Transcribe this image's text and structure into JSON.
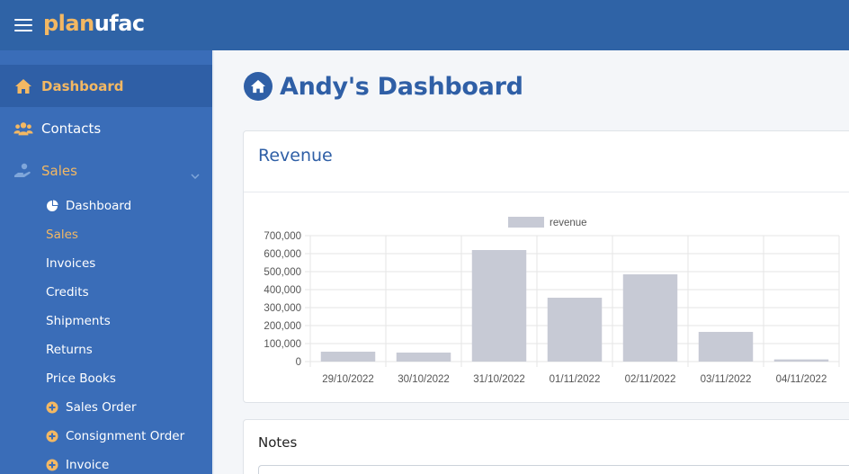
{
  "brand": {
    "part1": "plan",
    "part2": "ufac"
  },
  "sidebar": {
    "items": [
      {
        "label": "Dashboard",
        "icon": "home-icon"
      },
      {
        "label": "Contacts",
        "icon": "users-icon"
      },
      {
        "label": "Sales",
        "icon": "hand-coin-icon"
      }
    ],
    "sales_sub": [
      {
        "label": "Dashboard",
        "icon": "pie-chart-icon"
      },
      {
        "label": "Sales"
      },
      {
        "label": "Invoices"
      },
      {
        "label": "Credits"
      },
      {
        "label": "Shipments"
      },
      {
        "label": "Returns"
      },
      {
        "label": "Price Books"
      },
      {
        "label": "Sales Order",
        "icon": "plus-circle-icon"
      },
      {
        "label": "Consignment Order",
        "icon": "plus-circle-icon"
      },
      {
        "label": "Invoice",
        "icon": "plus-circle-icon"
      }
    ]
  },
  "page": {
    "title": "Andy's Dashboard"
  },
  "revenue_card": {
    "title": "Revenue"
  },
  "notes_card": {
    "title": "Notes"
  },
  "colors": {
    "header": "#2f63a6",
    "sidebar": "#3a6db8",
    "sidebar_active": "#2f5fa6",
    "accent": "#f3b863",
    "bar": "#c7cad5",
    "title": "#2f5fa6"
  },
  "chart_data": {
    "type": "bar",
    "categories": [
      "29/10/2022",
      "30/10/2022",
      "31/10/2022",
      "01/11/2022",
      "02/11/2022",
      "03/11/2022",
      "04/11/2022"
    ],
    "series": [
      {
        "name": "revenue",
        "values": [
          55000,
          50000,
          620000,
          355000,
          485000,
          165000,
          12000
        ]
      }
    ],
    "ylim": [
      0,
      700000
    ],
    "yticks": [
      "700,000",
      "600,000",
      "500,000",
      "400,000",
      "300,000",
      "200,000",
      "100,000",
      "0"
    ],
    "ytick_values": [
      700000,
      600000,
      500000,
      400000,
      300000,
      200000,
      100000,
      0
    ],
    "legend": "top",
    "grid": true
  }
}
